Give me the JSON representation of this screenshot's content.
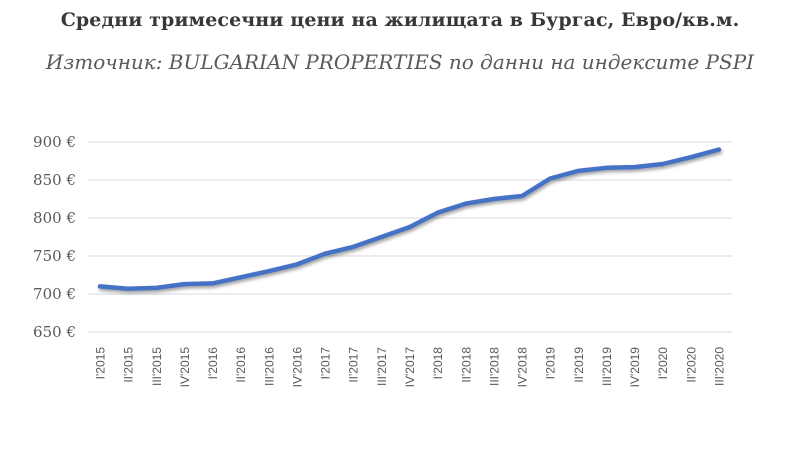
{
  "header": {
    "title": "Средни тримесечни цени на жилищата в Бургас, Евро/кв.м.",
    "subtitle": "Източник: BULGARIAN PROPERTIES по данни на индексите PSPI"
  },
  "chart_data": {
    "type": "line",
    "title": "Средни тримесечни цени на жилищата в Бургас, Евро/кв.м.",
    "subtitle": "Източник: BULGARIAN PROPERTIES по данни на индексите PSPI",
    "categories": [
      "I'2015",
      "II'2015",
      "III'2015",
      "IV'2015",
      "I'2016",
      "II'2016",
      "III'2016",
      "IV'2016",
      "I'2017",
      "II'2017",
      "III'2017",
      "IV'2017",
      "I'2018",
      "II'2018",
      "III'2018",
      "IV'2018",
      "I'2019",
      "II'2019",
      "III'2019",
      "IV'2019",
      "I'2020",
      "II'2020",
      "III'2020"
    ],
    "values": [
      710,
      707,
      708,
      713,
      714,
      722,
      730,
      739,
      753,
      762,
      775,
      788,
      807,
      819,
      825,
      829,
      852,
      862,
      866,
      867,
      871,
      880,
      890
    ],
    "ylim": [
      650,
      900
    ],
    "yticks": [
      {
        "value": 650,
        "label": "650 €"
      },
      {
        "value": 700,
        "label": "700 €"
      },
      {
        "value": 750,
        "label": "750 €"
      },
      {
        "value": 800,
        "label": "800 €"
      },
      {
        "value": 850,
        "label": "850 €"
      },
      {
        "value": 900,
        "label": "900 €"
      }
    ],
    "grid": true,
    "legend": "none",
    "line_color": "#4472C4",
    "gridline_color": "#d9d9d9",
    "axis_label_color": "#595959",
    "background_color": "#ffffff"
  }
}
